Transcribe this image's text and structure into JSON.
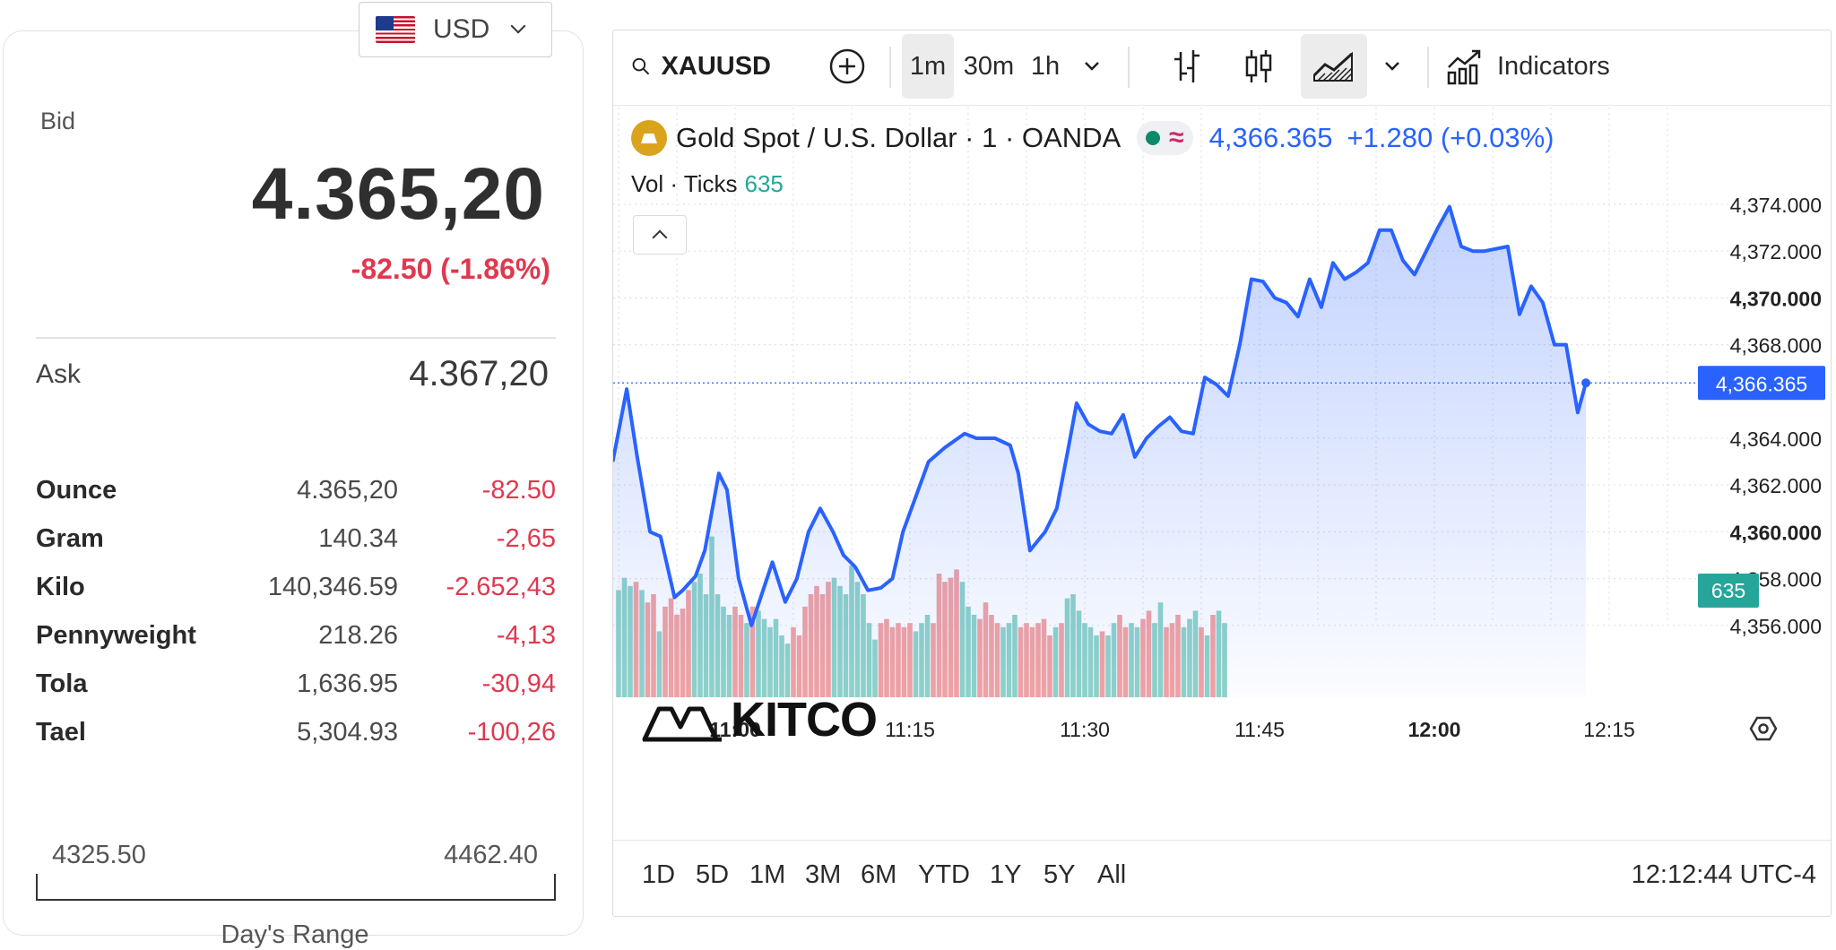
{
  "currency": {
    "code": "USD",
    "flag_icon": "us-flag-icon"
  },
  "bid": {
    "label": "Bid",
    "value": "4.365,20",
    "change": "-82.50 (-1.86%)"
  },
  "ask": {
    "label": "Ask",
    "value": "4.367,20"
  },
  "units": [
    {
      "name": "Ounce",
      "price": "4.365,20",
      "change": "-82.50"
    },
    {
      "name": "Gram",
      "price": "140.34",
      "change": "-2,65"
    },
    {
      "name": "Kilo",
      "price": "140,346.59",
      "change": "-2.652,43"
    },
    {
      "name": "Pennyweight",
      "price": "218.26",
      "change": "-4,13"
    },
    {
      "name": "Tola",
      "price": "1,636.95",
      "change": "-30,94"
    },
    {
      "name": "Tael",
      "price": "5,304.93",
      "change": "-100,26"
    }
  ],
  "day_range": {
    "low": "4325.50",
    "high": "4462.40",
    "label": "Day's Range"
  },
  "toolbar": {
    "symbol": "XAUUSD",
    "timeframes": [
      "1m",
      "30m",
      "1h"
    ],
    "active_timeframe": "1m",
    "indicators_label": "Indicators"
  },
  "legend": {
    "title": "Gold Spot / U.S. Dollar · 1 · OANDA",
    "status_wave": "≈",
    "price": "4,366.365",
    "change": "+1.280 (+0.03%)",
    "vol_label": "Vol · Ticks",
    "vol_value": "635"
  },
  "watermark": "KITCO",
  "ranges": [
    "1D",
    "5D",
    "1M",
    "3M",
    "6M",
    "YTD",
    "1Y",
    "5Y",
    "All"
  ],
  "clock": "12:12:44 UTC-4",
  "colors": {
    "line": "#2962ff",
    "up_volume": "#8fd3c9",
    "down_volume": "#f2a3a3",
    "negative": "#e0384f",
    "price_tag": "#2962ff",
    "volume_tag": "#26a69a"
  },
  "chart_data": {
    "type": "area",
    "x_tick_labels": [
      "11:00",
      "11:15",
      "11:30",
      "11:45",
      "12:00",
      "12:15"
    ],
    "x_tick_minutes": [
      0,
      15,
      30,
      45,
      60,
      75
    ],
    "y_tick_labels": [
      "4,374.000",
      "4,372.000",
      "4,370.000",
      "4,368.000",
      "4,364.000",
      "4,362.000",
      "4,360.000",
      "4,358.000",
      "4,356.000"
    ],
    "y_ticks": [
      4374,
      4372,
      4370,
      4368,
      4364,
      4362,
      4360,
      4358,
      4356
    ],
    "ylim": [
      4354.3,
      4376.0
    ],
    "last_price_label": "4,366.365",
    "last_price": 4366.365,
    "volume_label": "635",
    "series": [
      {
        "name": "Gold Spot / U.S. Dollar",
        "points": [
          [
            -10.5,
            4363.0
          ],
          [
            -9.3,
            4366.1
          ],
          [
            -8.4,
            4363.2
          ],
          [
            -7.3,
            4360.0
          ],
          [
            -6.4,
            4359.8
          ],
          [
            -5.2,
            4357.2
          ],
          [
            -4.5,
            4357.5
          ],
          [
            -3.4,
            4358.1
          ],
          [
            -2.6,
            4359.2
          ],
          [
            -1.4,
            4362.5
          ],
          [
            -0.7,
            4361.8
          ],
          [
            0.3,
            4358.0
          ],
          [
            1.4,
            4356.0
          ],
          [
            3.2,
            4358.7
          ],
          [
            4.3,
            4357.0
          ],
          [
            5.3,
            4358.0
          ],
          [
            6.3,
            4360.0
          ],
          [
            7.3,
            4361.0
          ],
          [
            8.4,
            4360.0
          ],
          [
            9.3,
            4359.0
          ],
          [
            10.3,
            4358.5
          ],
          [
            11.4,
            4357.5
          ],
          [
            12.5,
            4357.6
          ],
          [
            13.5,
            4358.0
          ],
          [
            14.4,
            4360.0
          ],
          [
            16.6,
            4363.0
          ],
          [
            18.0,
            4363.6
          ],
          [
            19.7,
            4364.2
          ],
          [
            20.7,
            4364.0
          ],
          [
            22.3,
            4364.0
          ],
          [
            23.6,
            4363.7
          ],
          [
            24.3,
            4362.5
          ],
          [
            25.3,
            4359.2
          ],
          [
            26.6,
            4360.0
          ],
          [
            27.6,
            4361.0
          ],
          [
            28.6,
            4363.6
          ],
          [
            29.3,
            4365.5
          ],
          [
            30.3,
            4364.6
          ],
          [
            31.3,
            4364.3
          ],
          [
            32.3,
            4364.2
          ],
          [
            33.3,
            4365.0
          ],
          [
            34.3,
            4363.2
          ],
          [
            35.3,
            4364.0
          ],
          [
            36.3,
            4364.5
          ],
          [
            37.3,
            4364.9
          ],
          [
            38.3,
            4364.3
          ],
          [
            39.3,
            4364.2
          ],
          [
            40.3,
            4366.6
          ],
          [
            41.3,
            4366.3
          ],
          [
            42.3,
            4365.8
          ],
          [
            43.3,
            4368.0
          ],
          [
            44.3,
            4370.8
          ],
          [
            45.3,
            4370.7
          ],
          [
            46.3,
            4370.0
          ],
          [
            47.3,
            4369.8
          ],
          [
            48.3,
            4369.2
          ],
          [
            49.3,
            4370.8
          ],
          [
            50.3,
            4369.6
          ],
          [
            51.3,
            4371.5
          ],
          [
            52.3,
            4370.8
          ],
          [
            53.3,
            4371.1
          ],
          [
            54.3,
            4371.5
          ],
          [
            55.3,
            4372.9
          ],
          [
            56.3,
            4372.9
          ],
          [
            57.3,
            4371.6
          ],
          [
            58.3,
            4371.0
          ],
          [
            59.3,
            4372.0
          ],
          [
            60.3,
            4373.0
          ],
          [
            61.3,
            4373.9
          ],
          [
            62.3,
            4372.2
          ],
          [
            63.3,
            4372.0
          ],
          [
            64.3,
            4372.0
          ],
          [
            65.3,
            4372.1
          ],
          [
            66.3,
            4372.2
          ],
          [
            67.3,
            4369.3
          ],
          [
            68.3,
            4370.5
          ],
          [
            69.3,
            4369.8
          ],
          [
            70.3,
            4368.0
          ],
          [
            71.3,
            4368.0
          ],
          [
            72.3,
            4365.1
          ],
          [
            73.0,
            4366.365
          ]
        ]
      }
    ],
    "volume": {
      "ymax": 7.0,
      "bars": [
        [
          -10.0,
          5.2,
          "up"
        ],
        [
          -9.5,
          5.8,
          "up"
        ],
        [
          -9.0,
          5.4,
          "up"
        ],
        [
          -8.5,
          5.6,
          "down"
        ],
        [
          -8.0,
          5.2,
          "up"
        ],
        [
          -7.5,
          4.6,
          "down"
        ],
        [
          -7.0,
          5.0,
          "down"
        ],
        [
          -6.5,
          3.2,
          "up"
        ],
        [
          -6.0,
          4.4,
          "down"
        ],
        [
          -5.5,
          4.8,
          "down"
        ],
        [
          -5.0,
          4.0,
          "down"
        ],
        [
          -4.5,
          4.3,
          "down"
        ],
        [
          -4.0,
          5.2,
          "down"
        ],
        [
          -3.5,
          5.6,
          "up"
        ],
        [
          -3.0,
          6.0,
          "up"
        ],
        [
          -2.5,
          5.0,
          "up"
        ],
        [
          -2.0,
          7.8,
          "up"
        ],
        [
          -1.5,
          5.0,
          "up"
        ],
        [
          -1.0,
          4.4,
          "up"
        ],
        [
          -0.5,
          4.0,
          "up"
        ],
        [
          0.0,
          4.4,
          "down"
        ],
        [
          0.5,
          4.0,
          "down"
        ],
        [
          1.0,
          3.6,
          "up"
        ],
        [
          1.5,
          4.4,
          "down"
        ],
        [
          2.0,
          4.2,
          "up"
        ],
        [
          2.5,
          3.8,
          "up"
        ],
        [
          3.0,
          3.4,
          "up"
        ],
        [
          3.5,
          3.8,
          "up"
        ],
        [
          4.0,
          3.0,
          "up"
        ],
        [
          4.5,
          2.6,
          "up"
        ],
        [
          5.0,
          3.4,
          "down"
        ],
        [
          5.5,
          3.0,
          "down"
        ],
        [
          6.0,
          4.4,
          "down"
        ],
        [
          6.5,
          5.0,
          "down"
        ],
        [
          7.0,
          5.4,
          "down"
        ],
        [
          7.5,
          5.0,
          "down"
        ],
        [
          8.0,
          5.6,
          "down"
        ],
        [
          8.5,
          5.8,
          "up"
        ],
        [
          9.0,
          5.4,
          "up"
        ],
        [
          9.5,
          5.0,
          "up"
        ],
        [
          10.0,
          6.4,
          "up"
        ],
        [
          10.5,
          5.6,
          "up"
        ],
        [
          11.0,
          5.0,
          "up"
        ],
        [
          11.5,
          3.6,
          "up"
        ],
        [
          12.0,
          2.8,
          "up"
        ],
        [
          12.5,
          3.6,
          "down"
        ],
        [
          13.0,
          3.8,
          "down"
        ],
        [
          13.5,
          3.4,
          "down"
        ],
        [
          14.0,
          3.6,
          "down"
        ],
        [
          14.5,
          3.4,
          "down"
        ],
        [
          15.0,
          3.6,
          "down"
        ],
        [
          15.5,
          3.2,
          "up"
        ],
        [
          16.0,
          3.6,
          "up"
        ],
        [
          16.5,
          4.0,
          "up"
        ],
        [
          17.0,
          3.6,
          "down"
        ],
        [
          17.5,
          6.0,
          "down"
        ],
        [
          18.0,
          5.6,
          "down"
        ],
        [
          18.5,
          5.8,
          "down"
        ],
        [
          19.0,
          6.2,
          "down"
        ],
        [
          19.5,
          5.6,
          "up"
        ],
        [
          20.0,
          4.4,
          "up"
        ],
        [
          20.5,
          4.0,
          "up"
        ],
        [
          21.0,
          3.8,
          "down"
        ],
        [
          21.5,
          4.6,
          "down"
        ],
        [
          22.0,
          4.0,
          "down"
        ],
        [
          22.5,
          3.6,
          "down"
        ],
        [
          23.0,
          3.4,
          "up"
        ],
        [
          23.5,
          3.6,
          "up"
        ],
        [
          24.0,
          4.0,
          "up"
        ],
        [
          24.5,
          3.4,
          "down"
        ],
        [
          25.0,
          3.6,
          "down"
        ],
        [
          25.5,
          3.4,
          "down"
        ],
        [
          26.0,
          3.6,
          "down"
        ],
        [
          26.5,
          3.8,
          "down"
        ],
        [
          27.0,
          3.0,
          "down"
        ],
        [
          27.5,
          3.4,
          "up"
        ],
        [
          28.0,
          3.6,
          "down"
        ],
        [
          28.5,
          4.8,
          "up"
        ],
        [
          29.0,
          5.0,
          "up"
        ],
        [
          29.5,
          4.2,
          "up"
        ],
        [
          30.0,
          3.6,
          "up"
        ],
        [
          30.5,
          3.4,
          "up"
        ],
        [
          31.0,
          3.0,
          "up"
        ],
        [
          31.5,
          3.2,
          "down"
        ],
        [
          32.0,
          3.0,
          "up"
        ],
        [
          32.5,
          3.6,
          "up"
        ],
        [
          33.0,
          4.0,
          "down"
        ],
        [
          33.5,
          3.4,
          "down"
        ],
        [
          34.0,
          3.6,
          "up"
        ],
        [
          34.5,
          3.4,
          "up"
        ],
        [
          35.0,
          3.8,
          "down"
        ],
        [
          35.5,
          4.2,
          "down"
        ],
        [
          36.0,
          3.6,
          "up"
        ],
        [
          36.5,
          4.6,
          "up"
        ],
        [
          37.0,
          3.4,
          "down"
        ],
        [
          37.5,
          3.6,
          "down"
        ],
        [
          38.0,
          4.0,
          "down"
        ],
        [
          38.5,
          3.4,
          "up"
        ],
        [
          39.0,
          3.8,
          "up"
        ],
        [
          39.5,
          4.2,
          "up"
        ],
        [
          40.0,
          3.4,
          "down"
        ],
        [
          40.5,
          3.0,
          "up"
        ],
        [
          41.0,
          4.0,
          "down"
        ],
        [
          41.5,
          4.2,
          "up"
        ],
        [
          42.0,
          3.6,
          "up"
        ]
      ]
    }
  }
}
